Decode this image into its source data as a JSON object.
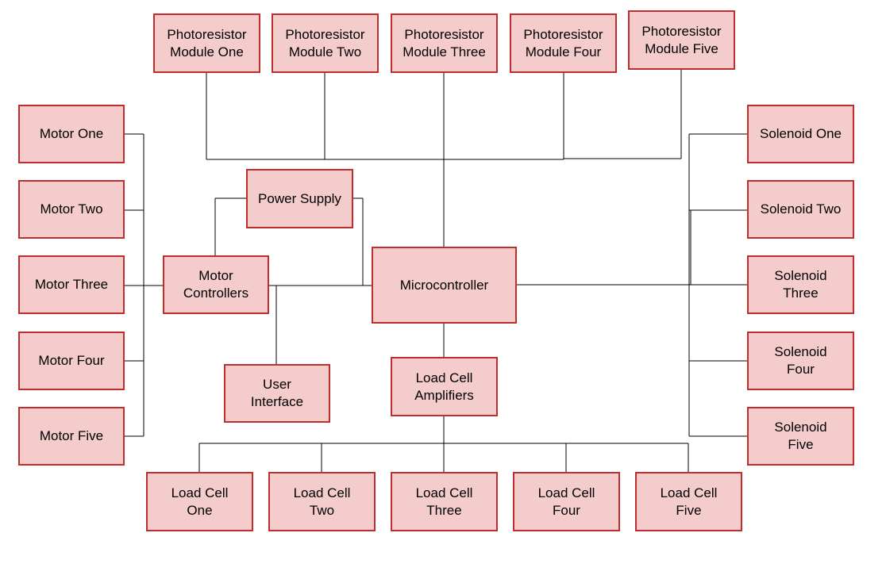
{
  "colors": {
    "box_fill": "#f4cccc",
    "box_border": "#bf2d2d",
    "line": "#000000",
    "text": "#000000",
    "background": "#ffffff"
  },
  "photoresistors": [
    "Photoresistor\nModule One",
    "Photoresistor\nModule Two",
    "Photoresistor\nModule Three",
    "Photoresistor\nModule Four",
    "Photoresistor\nModule Five"
  ],
  "motors": [
    "Motor One",
    "Motor Two",
    "Motor Three",
    "Motor Four",
    "Motor Five"
  ],
  "solenoids": [
    "Solenoid One",
    "Solenoid Two",
    "Solenoid\nThree",
    "Solenoid\nFour",
    "Solenoid\nFive"
  ],
  "load_cells": [
    "Load Cell\nOne",
    "Load Cell\nTwo",
    "Load Cell\nThree",
    "Load Cell\nFour",
    "Load Cell\nFive"
  ],
  "power_supply": "Power Supply",
  "motor_controllers": "Motor\nControllers",
  "user_interface": "User\nInterface",
  "microcontroller": "Microcontroller",
  "load_cell_amplifiers": "Load Cell\nAmplifiers"
}
